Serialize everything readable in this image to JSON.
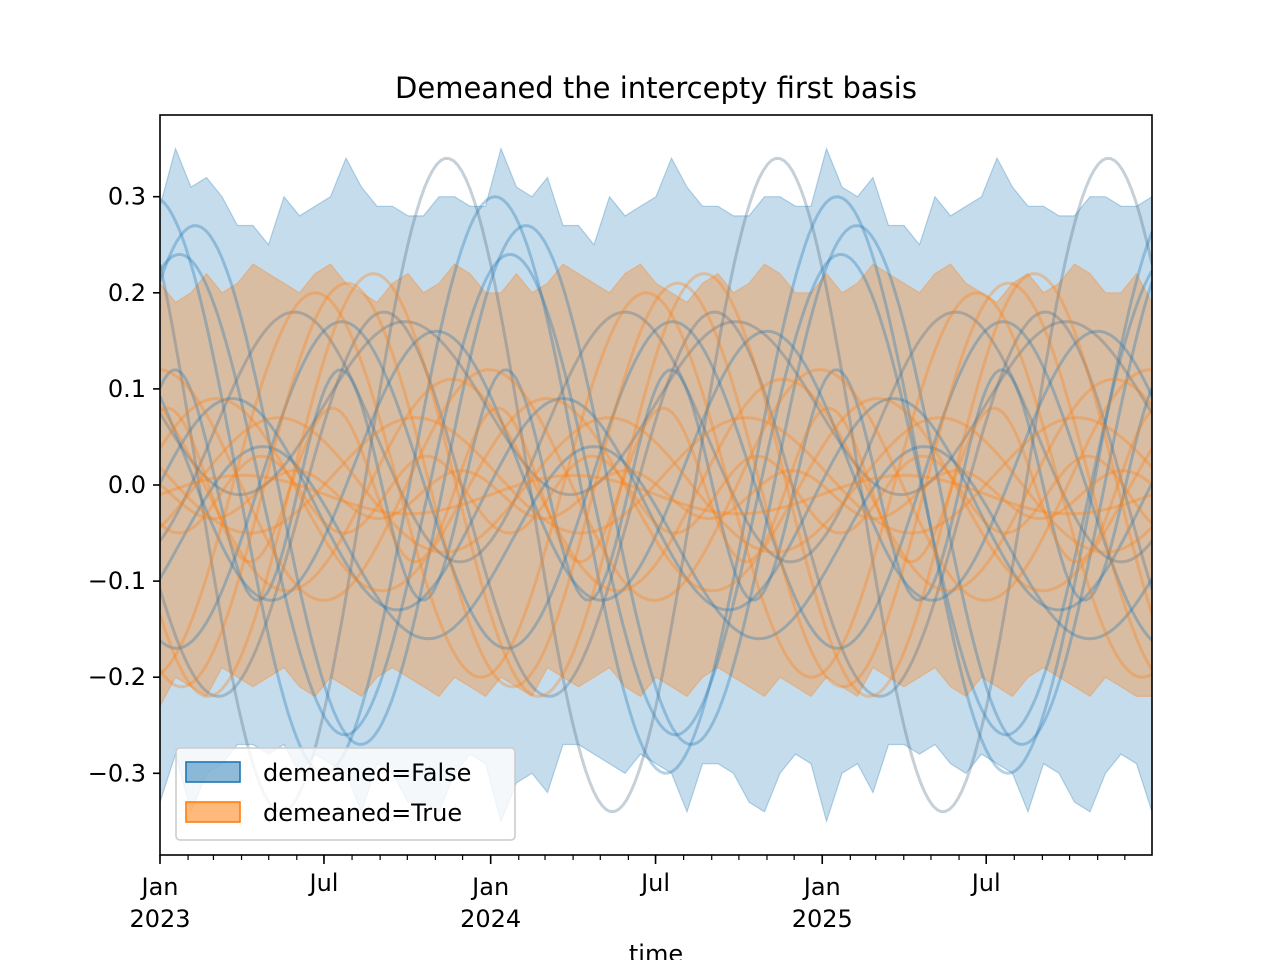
{
  "chart_data": {
    "type": "area",
    "title": "Demeaned the intercepty first basis",
    "xlabel": "time",
    "ylabel": "",
    "xlim": [
      "2023-01-01",
      "2025-12-31"
    ],
    "ylim": [
      -0.385,
      0.385
    ],
    "y_ticks": [
      {
        "value": 0.3,
        "label": "0.3"
      },
      {
        "value": 0.2,
        "label": "0.2"
      },
      {
        "value": 0.1,
        "label": "0.1"
      },
      {
        "value": 0.0,
        "label": "0.0"
      },
      {
        "value": -0.1,
        "label": "−0.1"
      },
      {
        "value": -0.2,
        "label": "−0.2"
      },
      {
        "value": -0.3,
        "label": "−0.3"
      }
    ],
    "x_ticks": [
      {
        "date": "2023-01-01",
        "label": "Jan",
        "sublabel": "2023"
      },
      {
        "date": "2023-07-01",
        "label": "Jul",
        "sublabel": ""
      },
      {
        "date": "2024-01-01",
        "label": "Jan",
        "sublabel": "2024"
      },
      {
        "date": "2024-07-01",
        "label": "Jul",
        "sublabel": ""
      },
      {
        "date": "2025-01-01",
        "label": "Jan",
        "sublabel": "2025"
      },
      {
        "date": "2025-07-01",
        "label": "Jul",
        "sublabel": ""
      }
    ],
    "grid": false,
    "legend_position": "lower-left",
    "series": [
      {
        "name": "demeaned=False",
        "color": "#1f77b4",
        "band_upper": [
          0.29,
          0.35,
          0.31,
          0.32,
          0.3,
          0.27,
          0.27,
          0.25,
          0.3,
          0.28,
          0.29,
          0.3,
          0.34,
          0.31,
          0.29,
          0.29,
          0.28,
          0.28,
          0.3,
          0.3,
          0.29,
          0.29,
          0.35,
          0.31,
          0.3,
          0.32,
          0.27,
          0.27,
          0.25,
          0.3,
          0.28,
          0.29,
          0.3,
          0.34,
          0.31,
          0.29,
          0.29,
          0.28,
          0.28,
          0.3,
          0.3,
          0.29,
          0.29,
          0.35,
          0.31,
          0.3,
          0.32,
          0.27,
          0.27,
          0.25,
          0.3,
          0.28,
          0.29,
          0.3,
          0.34,
          0.31,
          0.29,
          0.29,
          0.28,
          0.28,
          0.3,
          0.3,
          0.29,
          0.29,
          0.3
        ],
        "band_lower": [
          -0.33,
          -0.28,
          -0.34,
          -0.3,
          -0.29,
          -0.27,
          -0.27,
          -0.28,
          -0.27,
          -0.3,
          -0.28,
          -0.29,
          -0.3,
          -0.34,
          -0.29,
          -0.3,
          -0.33,
          -0.33,
          -0.34,
          -0.3,
          -0.28,
          -0.29,
          -0.35,
          -0.31,
          -0.3,
          -0.32,
          -0.27,
          -0.27,
          -0.28,
          -0.29,
          -0.3,
          -0.28,
          -0.29,
          -0.3,
          -0.34,
          -0.29,
          -0.29,
          -0.3,
          -0.33,
          -0.34,
          -0.3,
          -0.28,
          -0.29,
          -0.35,
          -0.3,
          -0.29,
          -0.32,
          -0.27,
          -0.27,
          -0.28,
          -0.27,
          -0.29,
          -0.3,
          -0.28,
          -0.29,
          -0.3,
          -0.34,
          -0.29,
          -0.3,
          -0.33,
          -0.34,
          -0.3,
          -0.28,
          -0.29,
          -0.34
        ]
      },
      {
        "name": "demeaned=True",
        "color": "#ff7f0e",
        "band_upper": [
          0.21,
          0.19,
          0.2,
          0.22,
          0.2,
          0.21,
          0.23,
          0.22,
          0.21,
          0.2,
          0.22,
          0.23,
          0.21,
          0.2,
          0.19,
          0.21,
          0.22,
          0.2,
          0.21,
          0.23,
          0.22,
          0.2,
          0.2,
          0.22,
          0.2,
          0.21,
          0.23,
          0.22,
          0.21,
          0.2,
          0.22,
          0.23,
          0.21,
          0.2,
          0.19,
          0.21,
          0.22,
          0.2,
          0.21,
          0.23,
          0.22,
          0.2,
          0.2,
          0.22,
          0.2,
          0.21,
          0.23,
          0.22,
          0.21,
          0.2,
          0.22,
          0.23,
          0.21,
          0.2,
          0.19,
          0.21,
          0.22,
          0.2,
          0.21,
          0.23,
          0.22,
          0.2,
          0.2,
          0.22,
          0.19
        ],
        "band_lower": [
          -0.23,
          -0.2,
          -0.21,
          -0.22,
          -0.19,
          -0.2,
          -0.21,
          -0.2,
          -0.19,
          -0.21,
          -0.22,
          -0.2,
          -0.21,
          -0.22,
          -0.2,
          -0.19,
          -0.2,
          -0.21,
          -0.22,
          -0.2,
          -0.21,
          -0.22,
          -0.2,
          -0.21,
          -0.22,
          -0.19,
          -0.2,
          -0.21,
          -0.2,
          -0.19,
          -0.21,
          -0.22,
          -0.2,
          -0.21,
          -0.22,
          -0.2,
          -0.19,
          -0.2,
          -0.21,
          -0.22,
          -0.2,
          -0.21,
          -0.22,
          -0.2,
          -0.21,
          -0.22,
          -0.19,
          -0.2,
          -0.21,
          -0.2,
          -0.19,
          -0.21,
          -0.22,
          -0.2,
          -0.21,
          -0.22,
          -0.2,
          -0.19,
          -0.2,
          -0.21,
          -0.22,
          -0.2,
          -0.21,
          -0.22,
          -0.22
        ]
      }
    ],
    "basis_curves": {
      "demeaned=False": [
        {
          "amplitude": 0.3,
          "cycles": 2.9,
          "phase": 1.7,
          "offset": 0.0
        },
        {
          "amplitude": 0.34,
          "cycles": 3.0,
          "phase": 2.4,
          "offset": 0.0
        },
        {
          "amplitude": 0.27,
          "cycles": 3.0,
          "phase": 0.9,
          "offset": 0.0
        },
        {
          "amplitude": 0.25,
          "cycles": 3.0,
          "phase": 1.2,
          "offset": -0.01
        },
        {
          "amplitude": 0.2,
          "cycles": 3.0,
          "phase": 3.6,
          "offset": -0.02
        },
        {
          "amplitude": 0.17,
          "cycles": 3.0,
          "phase": 4.4,
          "offset": 0.0
        },
        {
          "amplitude": 0.14,
          "cycles": 3.0,
          "phase": 2.6,
          "offset": 0.02
        },
        {
          "amplitude": 0.13,
          "cycles": 3.0,
          "phase": 5.3,
          "offset": 0.05
        },
        {
          "amplitude": 0.11,
          "cycles": 3.0,
          "phase": 0.2,
          "offset": -0.02
        },
        {
          "amplitude": 0.12,
          "cycles": 6.0,
          "phase": 1.0,
          "offset": 0.0
        },
        {
          "amplitude": 0.09,
          "cycles": 3.0,
          "phase": 3.2,
          "offset": 0.08
        },
        {
          "amplitude": 0.1,
          "cycles": 3.0,
          "phase": 5.9,
          "offset": -0.06
        }
      ],
      "demeaned=True": [
        {
          "amplitude": 0.22,
          "cycles": 3.0,
          "phase": 3.8,
          "offset": 0.0
        },
        {
          "amplitude": 0.21,
          "cycles": 3.0,
          "phase": 4.3,
          "offset": 0.0
        },
        {
          "amplitude": 0.2,
          "cycles": 3.0,
          "phase": 4.9,
          "offset": 0.0
        },
        {
          "amplitude": 0.12,
          "cycles": 3.0,
          "phase": 1.6,
          "offset": 0.0
        },
        {
          "amplitude": 0.11,
          "cycles": 3.0,
          "phase": 2.3,
          "offset": 0.0
        },
        {
          "amplitude": 0.1,
          "cycles": 3.0,
          "phase": 0.5,
          "offset": -0.01
        },
        {
          "amplitude": 0.08,
          "cycles": 6.0,
          "phase": 1.3,
          "offset": 0.0
        },
        {
          "amplitude": 0.07,
          "cycles": 3.0,
          "phase": 5.6,
          "offset": 0.0
        },
        {
          "amplitude": 0.06,
          "cycles": 3.0,
          "phase": 3.0,
          "offset": 0.01
        },
        {
          "amplitude": 0.04,
          "cycles": 6.0,
          "phase": 4.0,
          "offset": -0.01
        },
        {
          "amplitude": 0.02,
          "cycles": 3.0,
          "phase": 0.0,
          "offset": -0.01
        },
        {
          "amplitude": 0.025,
          "cycles": 6.0,
          "phase": 2.7,
          "offset": -0.01
        }
      ]
    }
  }
}
